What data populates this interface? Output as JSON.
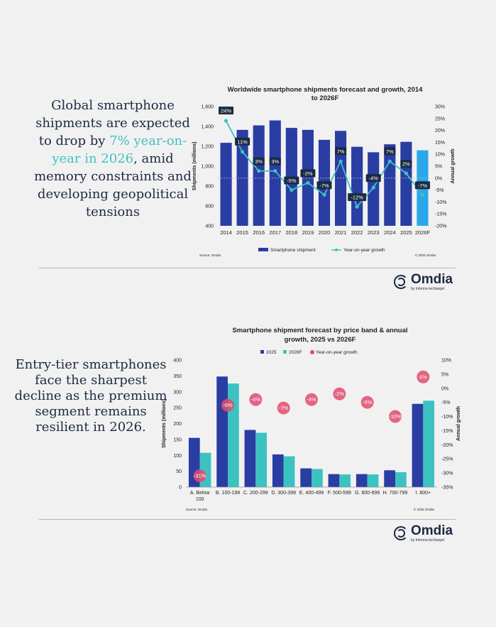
{
  "headline1": {
    "before": "Global smartphone shipments are expected to drop by ",
    "highlight": "7% year-on-year in 2026",
    "after": ", amid memory constraints and developing geopolitical tensions"
  },
  "headline2": {
    "text": "Entry-tier smartphones face the sharpest decline as the premium segment remains resilient in 2026."
  },
  "logo": {
    "name": "Omdia",
    "tagline": "by Informa techtarget"
  },
  "colors": {
    "dark_blue": "#2a3da3",
    "light_blue": "#2aa9ea",
    "teal": "#3dc2c2",
    "pink": "#e04c6e",
    "navy_text": "#1b2a44"
  },
  "chart_data": [
    {
      "type": "bar+line",
      "title": "Worldwide smartphone shipments forecast and growth, 2014 to 2026F",
      "title_lines": [
        "Worldwide smartphone shipments forecast and growth, 2014",
        "to 2026F"
      ],
      "categories": [
        "2014",
        "2015",
        "2016",
        "2017",
        "2018",
        "2019",
        "2020",
        "2021",
        "2022",
        "2023",
        "2024",
        "2025",
        "2026F"
      ],
      "series": [
        {
          "name": "Smartphone shipment",
          "axis": "left",
          "values": [
            1235,
            1365,
            1410,
            1460,
            1385,
            1365,
            1265,
            1355,
            1195,
            1140,
            1220,
            1245,
            1160
          ],
          "forecast_index": 12
        },
        {
          "name": "Year-on-year growth",
          "axis": "right",
          "unit": "%",
          "values": [
            24,
            11,
            3,
            3,
            -5,
            -2,
            -7,
            7,
            -12,
            -4,
            7,
            2,
            -7
          ],
          "labels": [
            "24%",
            "11%",
            "3%",
            "3%",
            "-5%",
            "-2%",
            "-7%",
            "7%",
            "-12%",
            "-4%",
            "7%",
            "2%",
            "-7%"
          ]
        }
      ],
      "ylabel": "Shipments (millions)",
      "y2label": "Annual growth",
      "ylim": [
        400,
        1600
      ],
      "yticks": [
        400,
        600,
        800,
        1000,
        1200,
        1400,
        1600
      ],
      "ytick_labels": [
        "400",
        "600",
        "800",
        "1,000",
        "1,200",
        "1,400",
        "1,600"
      ],
      "y2lim": [
        -20,
        30
      ],
      "y2ticks": [
        -20,
        -15,
        -10,
        -5,
        0,
        5,
        10,
        15,
        20,
        25,
        30
      ],
      "y2tick_labels": [
        "-20%",
        "-15%",
        "-10%",
        "-5%",
        "0%",
        "5%",
        "10%",
        "15%",
        "20%",
        "25%",
        "30%"
      ],
      "zero_line": true,
      "legend_position": "bottom",
      "source": "Source: Omdia",
      "copyright": "© 2026 Omdia"
    },
    {
      "type": "bar+scatter",
      "title": "Smartphone shipment forecast by price band & annual growth, 2025 vs 2026F",
      "title_lines": [
        "Smartphone shipment forecast by price band & annual",
        "growth, 2025 vs 2026F"
      ],
      "categories": [
        "A. Below 100",
        "B. 100-199",
        "C. 200-299",
        "D. 300-399",
        "E. 400-499",
        "F. 500-599",
        "G. 600-699",
        "H. 700-799",
        "I. 800+"
      ],
      "category_lines": [
        [
          "A. Below",
          "100"
        ],
        [
          "B. 100-199"
        ],
        [
          "C. 200-299"
        ],
        [
          "D. 300-399"
        ],
        [
          "E. 400-499"
        ],
        [
          "F. 500-599"
        ],
        [
          "G. 600-699"
        ],
        [
          "H. 700-799"
        ],
        [
          "I. 800+"
        ]
      ],
      "series": [
        {
          "name": "2025",
          "axis": "left",
          "values": [
            155,
            348,
            180,
            103,
            59,
            41,
            41,
            53,
            262
          ]
        },
        {
          "name": "2026F",
          "axis": "left",
          "values": [
            108,
            326,
            171,
            97,
            57,
            40,
            40,
            47,
            272
          ]
        },
        {
          "name": "Year-on-year growth",
          "axis": "right",
          "unit": "%",
          "values": [
            -31,
            -6,
            -4,
            -7,
            -4,
            -2,
            -5,
            -10,
            4
          ],
          "labels": [
            "-31%",
            "-6%",
            "-4%",
            "-7%",
            "-4%",
            "-2%",
            "-5%",
            "-10%",
            "4%"
          ]
        }
      ],
      "ylabel": "Shipments (millions)",
      "y2label": "Annual growth",
      "ylim": [
        0,
        400
      ],
      "yticks": [
        0,
        50,
        100,
        150,
        200,
        250,
        300,
        350,
        400
      ],
      "ytick_labels": [
        "0",
        "50",
        "100",
        "150",
        "200",
        "250",
        "300",
        "350",
        "400"
      ],
      "y2lim": [
        -35,
        10
      ],
      "y2ticks": [
        -35,
        -30,
        -25,
        -20,
        -15,
        -10,
        -5,
        0,
        5,
        10
      ],
      "y2tick_labels": [
        "-35%",
        "-30%",
        "-25%",
        "-20%",
        "-15%",
        "-10%",
        "-5%",
        "0%",
        "5%",
        "10%"
      ],
      "legend_position": "top",
      "source": "Source: Omdia",
      "copyright": "© 2025 Omdia"
    }
  ]
}
